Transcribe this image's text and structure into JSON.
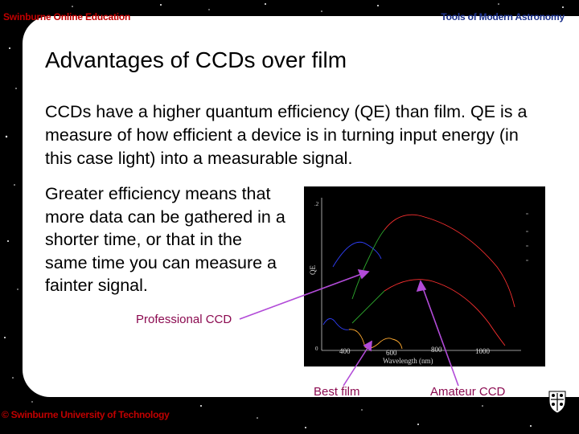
{
  "header": {
    "left": "Swinburne Online Education",
    "right": "Tools of Modern Astronomy"
  },
  "title": "Advantages of CCDs over film",
  "paragraph1": "CCDs have a higher quantum efficiency (QE) than film. QE is a measure of how efficient a device is in turning input energy (in this case light) into a measurable signal.",
  "paragraph2": "Greater efficiency means that more data can be gathered in a shorter time, or that in the same time you can measure a fainter signal.",
  "labels": {
    "professional": "Professional CCD",
    "best_film": "Best film",
    "amateur": "Amateur CCD"
  },
  "footer": "© Swinburne University of Technology",
  "colors": {
    "header_left": "#c00000",
    "header_right": "#1a2f8a",
    "annotation": "#8b0a50",
    "arrow": "#b24bd8"
  },
  "plot": {
    "ylabel": "QE",
    "xlabel": "Wavelength (nm)",
    "yticks": [
      "0",
      ".2"
    ],
    "xticks": [
      "400",
      "600",
      "800",
      "1000"
    ]
  }
}
